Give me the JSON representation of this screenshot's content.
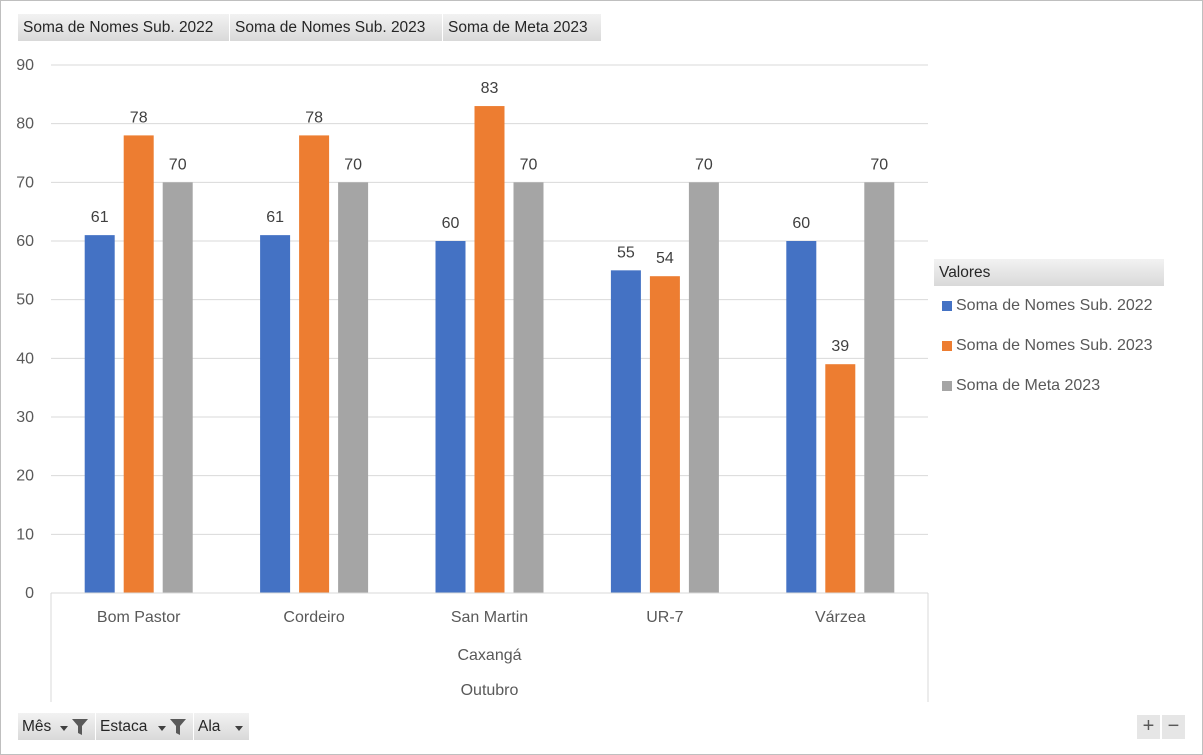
{
  "value_buttons": [
    "Soma de Nomes Sub. 2022",
    "Soma de Nomes Sub. 2023",
    "Soma de Meta 2023"
  ],
  "legend": {
    "title": "Valores",
    "items": [
      {
        "label": "Soma de Nomes Sub. 2022",
        "color": "#4472c4"
      },
      {
        "label": "Soma de Nomes Sub. 2023",
        "color": "#ed7d31"
      },
      {
        "label": "Soma de Meta 2023",
        "color": "#a5a5a5"
      }
    ]
  },
  "axis_buttons": {
    "mes": "Mês",
    "estaca": "Estaca",
    "ala": "Ala",
    "mes_icons": [
      "caret-down-icon",
      "filter-icon"
    ],
    "estaca_icons": [
      "caret-down-icon",
      "filter-icon"
    ],
    "ala_icons": [
      "caret-down-icon"
    ]
  },
  "zoom": {
    "plus": "+",
    "minus": "−"
  },
  "chart_data": {
    "type": "bar",
    "categories": [
      "Bom Pastor",
      "Cordeiro",
      "San Martin",
      "UR-7",
      "Várzea"
    ],
    "group_label": "Caxangá",
    "outer_label": "Outubro",
    "series": [
      {
        "name": "Soma de Nomes Sub. 2022",
        "color": "#4472c4",
        "values": [
          61,
          61,
          60,
          55,
          60
        ]
      },
      {
        "name": "Soma de Nomes Sub. 2023",
        "color": "#ed7d31",
        "values": [
          78,
          78,
          83,
          54,
          39
        ]
      },
      {
        "name": "Soma de Meta 2023",
        "color": "#a5a5a5",
        "values": [
          70,
          70,
          70,
          70,
          70
        ]
      }
    ],
    "ylim": [
      0,
      90
    ],
    "yticks": [
      0,
      10,
      20,
      30,
      40,
      50,
      60,
      70,
      80,
      90
    ],
    "grid": true,
    "data_labels": true,
    "legend_position": "right"
  }
}
